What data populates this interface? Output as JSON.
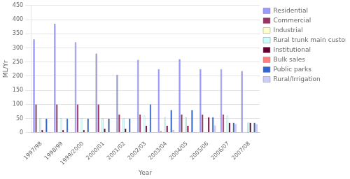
{
  "chart_data": {
    "type": "bar",
    "xlabel": "Year",
    "ylabel": "ML/Yr",
    "categories": [
      "1997/98",
      "1998/99",
      "1999/2000",
      "2000/01",
      "2001/02",
      "2002/03",
      "2003/04",
      "2004/05",
      "2005/06",
      "2006/07",
      "2007/08"
    ],
    "series": [
      {
        "name": "Residential",
        "color": "#9999ff",
        "values": [
          330,
          385,
          320,
          280,
          205,
          258,
          225,
          260,
          225,
          225,
          218
        ]
      },
      {
        "name": "Commercial",
        "color": "#993366",
        "values": [
          100,
          100,
          100,
          100,
          65,
          65,
          5,
          65,
          65,
          65,
          0
        ]
      },
      {
        "name": "Industrial",
        "color": "#ffffcc",
        "values": [
          0,
          0,
          0,
          0,
          0,
          0,
          0,
          0,
          0,
          0,
          0
        ]
      },
      {
        "name": "Rural trunk main customers",
        "color": "#ccffff",
        "values": [
          50,
          50,
          50,
          50,
          50,
          60,
          55,
          55,
          0,
          60,
          35
        ]
      },
      {
        "name": "Institutional",
        "color": "#660033",
        "values": [
          10,
          10,
          10,
          15,
          15,
          25,
          25,
          25,
          55,
          35,
          35
        ]
      },
      {
        "name": "Bulk sales",
        "color": "#ff8080",
        "values": [
          0,
          0,
          0,
          0,
          0,
          0,
          0,
          0,
          0,
          0,
          0
        ]
      },
      {
        "name": "Public parks",
        "color": "#3366cc",
        "values": [
          50,
          50,
          50,
          50,
          50,
          100,
          80,
          80,
          55,
          35,
          35
        ]
      },
      {
        "name": "Rural/Irrigation",
        "color": "#ccccff",
        "values": [
          0,
          0,
          0,
          0,
          0,
          0,
          10,
          0,
          25,
          30,
          30
        ]
      }
    ],
    "ylim": [
      0,
      450
    ],
    "yticks": [
      0,
      50,
      100,
      150,
      200,
      250,
      300,
      350,
      400,
      450
    ],
    "grid": true,
    "legend": "right"
  }
}
